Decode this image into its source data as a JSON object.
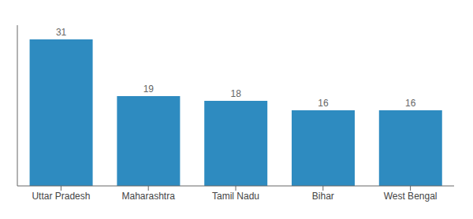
{
  "chart_data": {
    "type": "bar",
    "categories": [
      "Uttar Pradesh",
      "Maharashtra",
      "Tamil Nadu",
      "Bihar",
      "West Bengal"
    ],
    "values": [
      31,
      19,
      18,
      16,
      16
    ],
    "color": "#2e8bc0",
    "ylim": [
      0,
      34
    ],
    "data_labels": true,
    "tick_labels": "x",
    "grid": false
  }
}
